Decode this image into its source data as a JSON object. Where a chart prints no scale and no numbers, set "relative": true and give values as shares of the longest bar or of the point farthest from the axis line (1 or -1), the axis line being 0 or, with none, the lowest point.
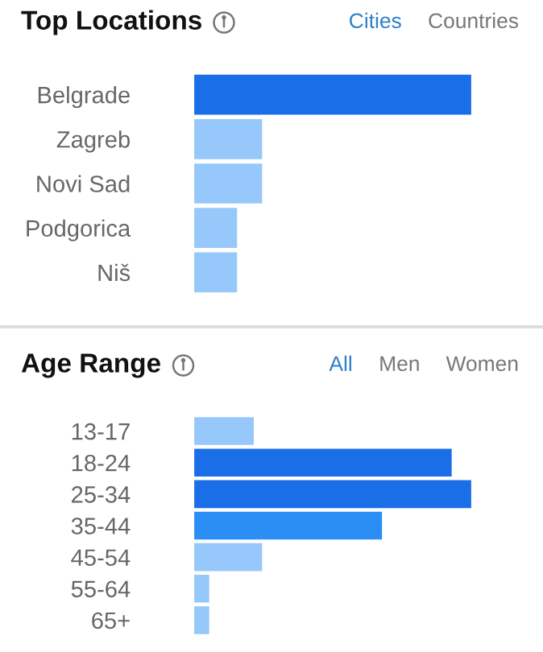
{
  "chart_data": [
    {
      "type": "bar",
      "orientation": "horizontal",
      "relative": true,
      "title": "Top Locations",
      "annotations": [
        "Cities",
        "Countries"
      ],
      "categories": [
        "Belgrade",
        "Zagreb",
        "Novi Sad",
        "Podgorica",
        "Niš"
      ],
      "values": [
        1,
        0.25,
        0.25,
        0.16,
        0.16
      ],
      "colors": [
        "#1a6fe8",
        "#96c8fb",
        "#96c8fb",
        "#96c8fb",
        "#96c8fb"
      ]
    },
    {
      "type": "bar",
      "orientation": "horizontal",
      "relative": true,
      "title": "Age Range",
      "annotations": [
        "All",
        "Men",
        "Women"
      ],
      "categories": [
        "13-17",
        "18-24",
        "25-34",
        "35-44",
        "45-54",
        "55-64",
        "65+"
      ],
      "values": [
        0.22,
        0.93,
        1,
        0.68,
        0.25,
        0.06,
        0.06
      ],
      "colors": [
        "#96c8fb",
        "#1a6fe8",
        "#1a6fe8",
        "#2a8ef5",
        "#96c8fb",
        "#96c8fb",
        "#96c8fb"
      ]
    }
  ]
}
